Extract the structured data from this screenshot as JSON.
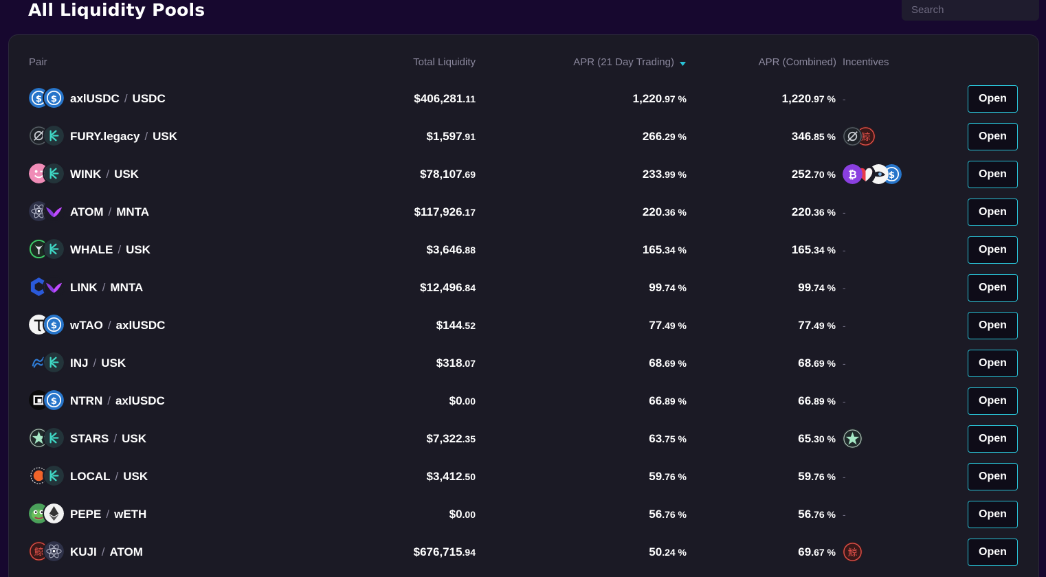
{
  "header": {
    "title": "All Liquidity Pools"
  },
  "search": {
    "placeholder": "Search"
  },
  "table": {
    "columns": {
      "pair": "Pair",
      "liquidity": "Total Liquidity",
      "apr_trading": "APR (21 Day Trading)",
      "apr_combined": "APR (Combined)",
      "incentives": "Incentives"
    },
    "sort": {
      "column": "apr_trading",
      "direction": "descending"
    },
    "open_label": "Open",
    "separator": "/",
    "rows": [
      {
        "base": "axlUSDC",
        "quote": "USDC",
        "base_icon": "usdc-icon",
        "quote_icon": "usdc-icon",
        "liq_int": "$406,281",
        "liq_dec": ".11",
        "apr_int": "1,220",
        "apr_dec": ".97 %",
        "aprc_int": "1,220",
        "aprc_dec": ".97 %",
        "incentives": []
      },
      {
        "base": "FURY.legacy",
        "quote": "USK",
        "base_icon": "fury-icon",
        "quote_icon": "usk-icon",
        "liq_int": "$1,597",
        "liq_dec": ".91",
        "apr_int": "266",
        "apr_dec": ".29 %",
        "aprc_int": "346",
        "aprc_dec": ".85 %",
        "incentives": [
          "fury-icon",
          "kuji-icon"
        ]
      },
      {
        "base": "WINK",
        "quote": "USK",
        "base_icon": "wink-icon",
        "quote_icon": "usk-icon",
        "liq_int": "$78,107",
        "liq_dec": ".69",
        "apr_int": "233",
        "apr_dec": ".99 %",
        "aprc_int": "252",
        "aprc_dec": ".70 %",
        "incentives": [
          "bitcoin-icon",
          "heart-icon",
          "whale-eye-icon",
          "usdc-icon"
        ]
      },
      {
        "base": "ATOM",
        "quote": "MNTA",
        "base_icon": "atom-icon",
        "quote_icon": "mnta-icon",
        "liq_int": "$117,926",
        "liq_dec": ".17",
        "apr_int": "220",
        "apr_dec": ".36 %",
        "aprc_int": "220",
        "aprc_dec": ".36 %",
        "incentives": []
      },
      {
        "base": "WHALE",
        "quote": "USK",
        "base_icon": "whale-icon",
        "quote_icon": "usk-icon",
        "liq_int": "$3,646",
        "liq_dec": ".88",
        "apr_int": "165",
        "apr_dec": ".34 %",
        "aprc_int": "165",
        "aprc_dec": ".34 %",
        "incentives": []
      },
      {
        "base": "LINK",
        "quote": "MNTA",
        "base_icon": "link-icon",
        "quote_icon": "mnta-icon",
        "liq_int": "$12,496",
        "liq_dec": ".84",
        "apr_int": "99",
        "apr_dec": ".74 %",
        "aprc_int": "99",
        "aprc_dec": ".74 %",
        "incentives": []
      },
      {
        "base": "wTAO",
        "quote": "axlUSDC",
        "base_icon": "tao-icon",
        "quote_icon": "usdc-icon",
        "liq_int": "$144",
        "liq_dec": ".52",
        "apr_int": "77",
        "apr_dec": ".49 %",
        "aprc_int": "77",
        "aprc_dec": ".49 %",
        "incentives": []
      },
      {
        "base": "INJ",
        "quote": "USK",
        "base_icon": "inj-icon",
        "quote_icon": "usk-icon",
        "liq_int": "$318",
        "liq_dec": ".07",
        "apr_int": "68",
        "apr_dec": ".69 %",
        "aprc_int": "68",
        "aprc_dec": ".69 %",
        "incentives": []
      },
      {
        "base": "NTRN",
        "quote": "axlUSDC",
        "base_icon": "ntrn-icon",
        "quote_icon": "usdc-icon",
        "liq_int": "$0",
        "liq_dec": ".00",
        "apr_int": "66",
        "apr_dec": ".89 %",
        "aprc_int": "66",
        "aprc_dec": ".89 %",
        "incentives": []
      },
      {
        "base": "STARS",
        "quote": "USK",
        "base_icon": "stars-icon",
        "quote_icon": "usk-icon",
        "liq_int": "$7,322",
        "liq_dec": ".35",
        "apr_int": "63",
        "apr_dec": ".75 %",
        "aprc_int": "65",
        "aprc_dec": ".30 %",
        "incentives": [
          "stars-icon"
        ]
      },
      {
        "base": "LOCAL",
        "quote": "USK",
        "base_icon": "local-icon",
        "quote_icon": "usk-icon",
        "liq_int": "$3,412",
        "liq_dec": ".50",
        "apr_int": "59",
        "apr_dec": ".76 %",
        "aprc_int": "59",
        "aprc_dec": ".76 %",
        "incentives": []
      },
      {
        "base": "PEPE",
        "quote": "wETH",
        "base_icon": "pepe-icon",
        "quote_icon": "eth-icon",
        "liq_int": "$0",
        "liq_dec": ".00",
        "apr_int": "56",
        "apr_dec": ".76 %",
        "aprc_int": "56",
        "aprc_dec": ".76 %",
        "incentives": []
      },
      {
        "base": "KUJI",
        "quote": "ATOM",
        "base_icon": "kuji-icon",
        "quote_icon": "atom-icon",
        "liq_int": "$676,715",
        "liq_dec": ".94",
        "apr_int": "50",
        "apr_dec": ".24 %",
        "aprc_int": "69",
        "aprc_dec": ".67 %",
        "incentives": [
          "kuji-icon"
        ]
      }
    ]
  },
  "empty_incentive": "-",
  "colors": {
    "background": "#17082f",
    "panel": "#1b1a25",
    "accent": "#29c2d6",
    "muted_text": "#8a879c"
  }
}
